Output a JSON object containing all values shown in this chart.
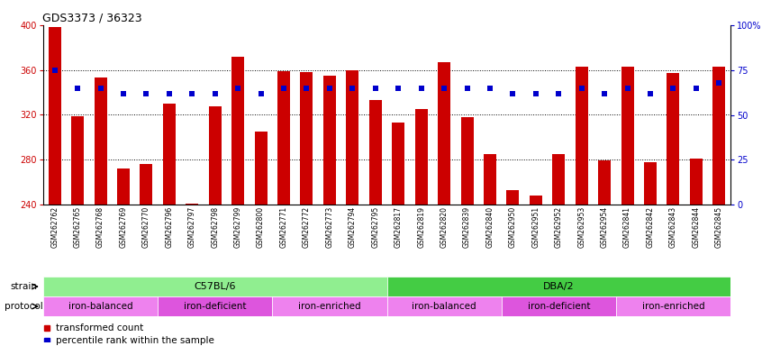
{
  "title": "GDS3373 / 36323",
  "samples": [
    "GSM262762",
    "GSM262765",
    "GSM262768",
    "GSM262769",
    "GSM262770",
    "GSM262796",
    "GSM262797",
    "GSM262798",
    "GSM262799",
    "GSM262800",
    "GSM262771",
    "GSM262772",
    "GSM262773",
    "GSM262794",
    "GSM262795",
    "GSM262817",
    "GSM262819",
    "GSM262820",
    "GSM262839",
    "GSM262840",
    "GSM262950",
    "GSM262951",
    "GSM262952",
    "GSM262953",
    "GSM262954",
    "GSM262841",
    "GSM262842",
    "GSM262843",
    "GSM262844",
    "GSM262845"
  ],
  "bar_values": [
    398,
    319,
    353,
    272,
    276,
    330,
    241,
    328,
    372,
    305,
    359,
    358,
    355,
    360,
    333,
    313,
    325,
    367,
    318,
    285,
    253,
    248,
    285,
    363,
    279,
    363,
    278,
    357,
    281,
    363
  ],
  "dot_values": [
    75,
    65,
    65,
    62,
    62,
    62,
    62,
    62,
    65,
    62,
    65,
    65,
    65,
    65,
    65,
    65,
    65,
    65,
    65,
    65,
    62,
    62,
    62,
    65,
    62,
    65,
    62,
    65,
    65,
    68
  ],
  "ylim_left": [
    240,
    400
  ],
  "ylim_right": [
    0,
    100
  ],
  "yticks_left": [
    240,
    280,
    320,
    360,
    400
  ],
  "yticks_right": [
    0,
    25,
    50,
    75,
    100
  ],
  "strain_groups": [
    {
      "label": "C57BL/6",
      "start": 0,
      "end": 14,
      "color": "#90ee90"
    },
    {
      "label": "DBA/2",
      "start": 15,
      "end": 29,
      "color": "#44cc44"
    }
  ],
  "protocol_groups": [
    {
      "label": "iron-balanced",
      "start": 0,
      "end": 4,
      "color": "#ee82ee"
    },
    {
      "label": "iron-deficient",
      "start": 5,
      "end": 9,
      "color": "#dd55dd"
    },
    {
      "label": "iron-enriched",
      "start": 10,
      "end": 14,
      "color": "#ee82ee"
    },
    {
      "label": "iron-balanced",
      "start": 15,
      "end": 19,
      "color": "#ee82ee"
    },
    {
      "label": "iron-deficient",
      "start": 20,
      "end": 24,
      "color": "#dd55dd"
    },
    {
      "label": "iron-enriched",
      "start": 25,
      "end": 29,
      "color": "#ee82ee"
    }
  ],
  "bar_color": "#cc0000",
  "dot_color": "#0000cc",
  "grid_color": "#000000",
  "background_color": "#ffffff",
  "left_axis_color": "#cc0000",
  "right_axis_color": "#0000cc",
  "legend_items": [
    {
      "label": "transformed count",
      "color": "#cc0000"
    },
    {
      "label": "percentile rank within the sample",
      "color": "#0000cc"
    }
  ]
}
